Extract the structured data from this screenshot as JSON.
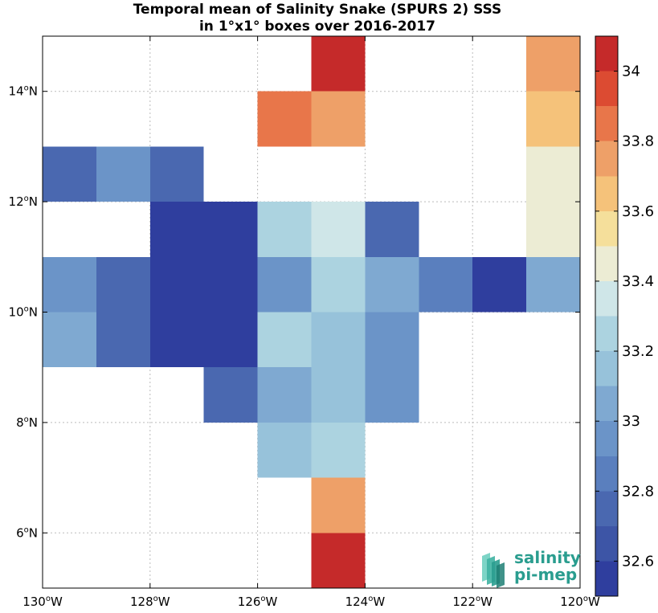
{
  "chart_data": {
    "type": "heatmap",
    "title_lines": [
      "Temporal mean of Salinity Snake (SPURS 2) SSS",
      "in 1°x1° boxes over 2016-2017"
    ],
    "xlim": [
      -130,
      -120
    ],
    "ylim": [
      5,
      15
    ],
    "x_ticks": [
      {
        "value": -130,
        "num": "130",
        "dir": "W"
      },
      {
        "value": -128,
        "num": "128",
        "dir": "W"
      },
      {
        "value": -126,
        "num": "126",
        "dir": "W"
      },
      {
        "value": -124,
        "num": "124",
        "dir": "W"
      },
      {
        "value": -122,
        "num": "122",
        "dir": "W"
      },
      {
        "value": -120,
        "num": "120",
        "dir": "W"
      }
    ],
    "y_ticks": [
      {
        "value": 6,
        "num": "6",
        "dir": "N"
      },
      {
        "value": 8,
        "num": "8",
        "dir": "N"
      },
      {
        "value": 10,
        "num": "10",
        "dir": "N"
      },
      {
        "value": 12,
        "num": "12",
        "dir": "N"
      },
      {
        "value": 14,
        "num": "14",
        "dir": "N"
      }
    ],
    "degree_symbol": "o",
    "grid": true,
    "colorbar": {
      "vmin": 32.5,
      "vmax": 34.1,
      "step": 0.1,
      "ticks": [
        "32.6",
        "32.8",
        "33",
        "33.2",
        "33.4",
        "33.6",
        "33.8",
        "34"
      ],
      "tick_values": [
        32.6,
        32.8,
        33.0,
        33.2,
        33.4,
        33.6,
        33.8,
        34.0
      ],
      "colors": [
        "#2f3e9e",
        "#3d55a6",
        "#4a68b0",
        "#5a7fbe",
        "#6b94c8",
        "#7fa9d1",
        "#97c2da",
        "#acd3e0",
        "#cfe6e8",
        "#ececd4",
        "#f5df9b",
        "#f5c27a",
        "#eea068",
        "#e8764a",
        "#dc4b32",
        "#c52a2a",
        "#a5072d"
      ]
    },
    "cells": [
      {
        "lon": -125,
        "lat": 14,
        "value": 34.0
      },
      {
        "lon": -121,
        "lat": 14,
        "value": 33.75
      },
      {
        "lon": -126,
        "lat": 13,
        "value": 33.83
      },
      {
        "lon": -125,
        "lat": 13,
        "value": 33.75
      },
      {
        "lon": -121,
        "lat": 13,
        "value": 33.65
      },
      {
        "lon": -130,
        "lat": 12,
        "value": 32.75
      },
      {
        "lon": -129,
        "lat": 12,
        "value": 32.92
      },
      {
        "lon": -128,
        "lat": 12,
        "value": 32.75
      },
      {
        "lon": -121,
        "lat": 12,
        "value": 33.42
      },
      {
        "lon": -128,
        "lat": 11,
        "value": 32.58
      },
      {
        "lon": -127,
        "lat": 11,
        "value": 32.58
      },
      {
        "lon": -126,
        "lat": 11,
        "value": 33.28
      },
      {
        "lon": -125,
        "lat": 11,
        "value": 33.35
      },
      {
        "lon": -124,
        "lat": 11,
        "value": 32.75
      },
      {
        "lon": -121,
        "lat": 11,
        "value": 33.42
      },
      {
        "lon": -130,
        "lat": 10,
        "value": 32.92
      },
      {
        "lon": -129,
        "lat": 10,
        "value": 32.75
      },
      {
        "lon": -128,
        "lat": 10,
        "value": 32.58
      },
      {
        "lon": -127,
        "lat": 10,
        "value": 32.58
      },
      {
        "lon": -126,
        "lat": 10,
        "value": 32.92
      },
      {
        "lon": -125,
        "lat": 10,
        "value": 33.25
      },
      {
        "lon": -124,
        "lat": 10,
        "value": 33.05
      },
      {
        "lon": -123,
        "lat": 10,
        "value": 32.85
      },
      {
        "lon": -122,
        "lat": 10,
        "value": 32.55
      },
      {
        "lon": -121,
        "lat": 10,
        "value": 33.05
      },
      {
        "lon": -130,
        "lat": 9,
        "value": 33.05
      },
      {
        "lon": -129,
        "lat": 9,
        "value": 32.75
      },
      {
        "lon": -128,
        "lat": 9,
        "value": 32.58
      },
      {
        "lon": -127,
        "lat": 9,
        "value": 32.58
      },
      {
        "lon": -126,
        "lat": 9,
        "value": 33.25
      },
      {
        "lon": -125,
        "lat": 9,
        "value": 33.15
      },
      {
        "lon": -124,
        "lat": 9,
        "value": 32.95
      },
      {
        "lon": -127,
        "lat": 8,
        "value": 32.75
      },
      {
        "lon": -126,
        "lat": 8,
        "value": 33.05
      },
      {
        "lon": -125,
        "lat": 8,
        "value": 33.15
      },
      {
        "lon": -124,
        "lat": 8,
        "value": 32.95
      },
      {
        "lon": -126,
        "lat": 7,
        "value": 33.1
      },
      {
        "lon": -125,
        "lat": 7,
        "value": 33.25
      },
      {
        "lon": -125,
        "lat": 6,
        "value": 33.75
      },
      {
        "lon": -125,
        "lat": 5,
        "value": 34.0
      }
    ]
  },
  "logo": {
    "line1": "salinity",
    "line2": "pi-mep",
    "color": "#2a9d8f"
  }
}
